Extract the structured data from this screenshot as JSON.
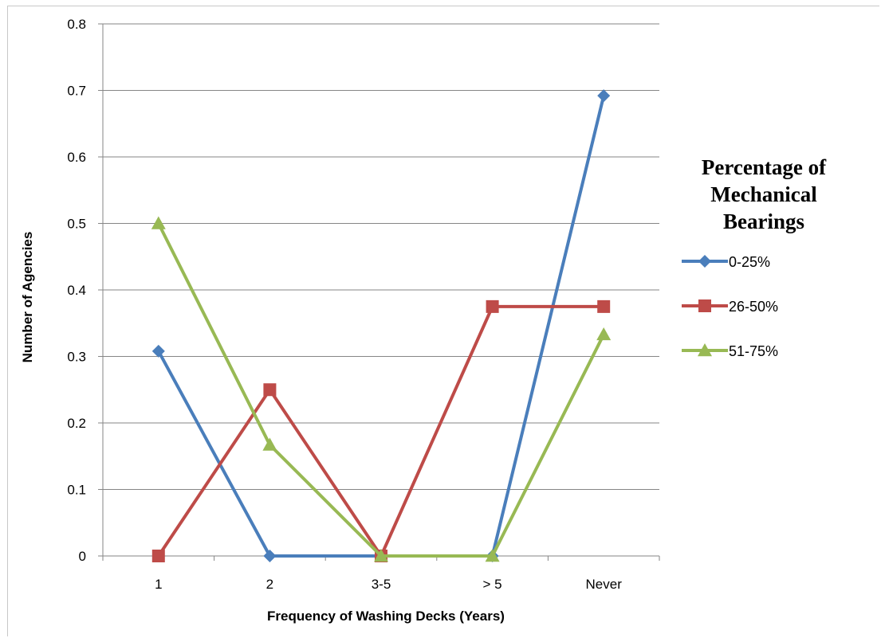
{
  "chart_data": {
    "type": "line",
    "title": "",
    "xlabel": "Frequency of Washing Decks (Years)",
    "ylabel": "Number of Agencies",
    "categories": [
      "1",
      "2",
      "3-5",
      "> 5",
      "Never"
    ],
    "ylim": [
      0,
      0.8
    ],
    "yticks": [
      "0",
      "0.1",
      "0.2",
      "0.3",
      "0.4",
      "0.5",
      "0.6",
      "0.7",
      "0.8"
    ],
    "grid": true,
    "legend": {
      "title_lines": [
        "Percentage of",
        "Mechanical",
        "Bearings"
      ],
      "placement": "right"
    },
    "series": [
      {
        "name": "0-25%",
        "values": [
          0.308,
          0,
          0,
          0,
          0.692
        ],
        "color": "#4a7ebb",
        "marker": "diamond"
      },
      {
        "name": "26-50%",
        "values": [
          0,
          0.25,
          0,
          0.375,
          0.375
        ],
        "color": "#be4b48",
        "marker": "square"
      },
      {
        "name": "51-75%",
        "values": [
          0.5,
          0.167,
          0,
          0,
          0.333
        ],
        "color": "#98b954",
        "marker": "triangle"
      }
    ]
  }
}
